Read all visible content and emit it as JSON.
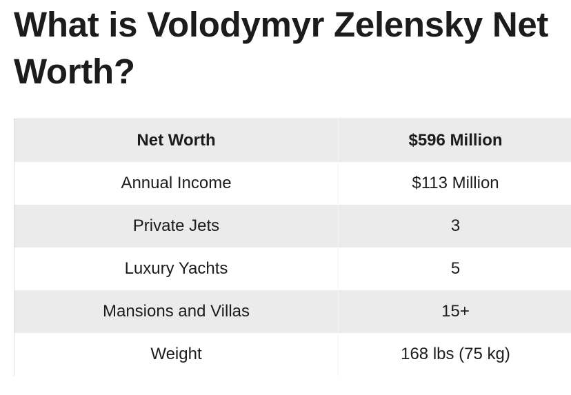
{
  "title": "What is Volodymyr Zelensky Net Worth?",
  "table": {
    "header": [
      "Net Worth",
      "$596 Million"
    ],
    "rows": [
      [
        "Annual Income",
        "$113 Million"
      ],
      [
        "Private Jets",
        "3"
      ],
      [
        "Luxury Yachts",
        "5"
      ],
      [
        "Mansions and Villas",
        "15+"
      ],
      [
        "Weight",
        "168 lbs (75 kg)"
      ]
    ]
  }
}
